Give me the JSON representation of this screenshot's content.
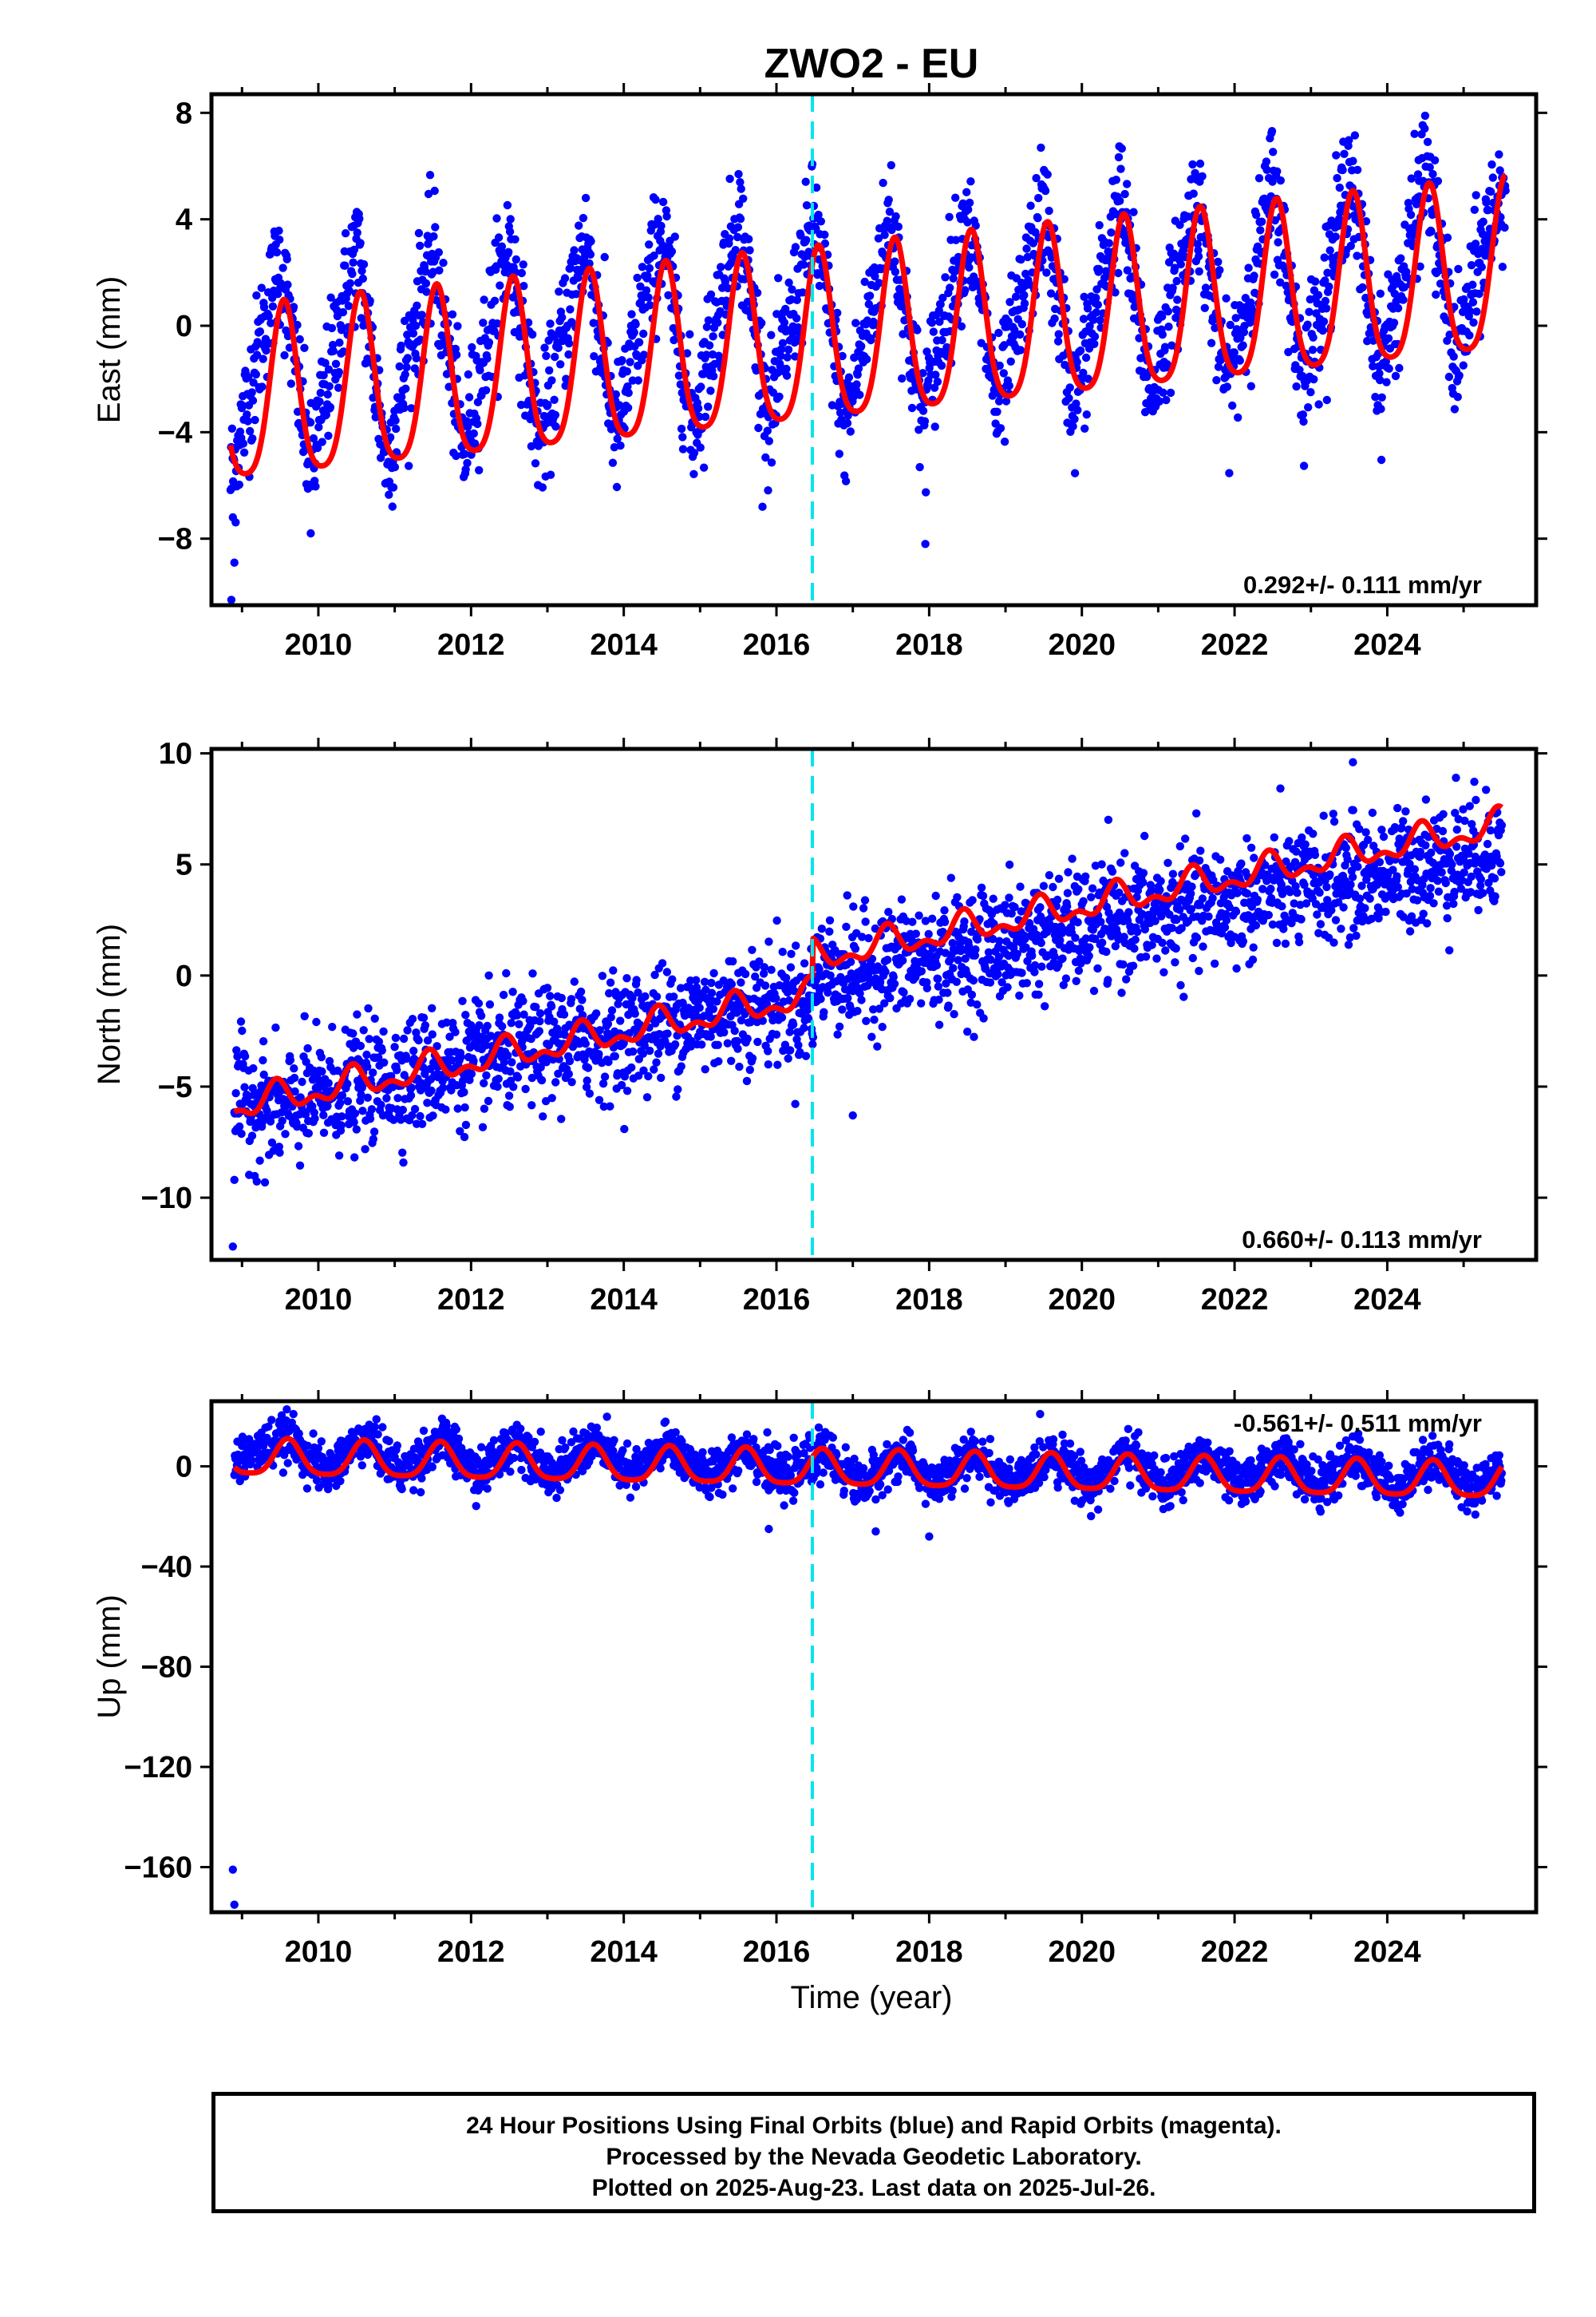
{
  "title": "ZWO2 - EU",
  "xlabel": "Time (year)",
  "x_tick_labels": [
    "2010",
    "2012",
    "2014",
    "2016",
    "2018",
    "2020",
    "2022",
    "2024"
  ],
  "colors": {
    "data_points": "#0000ff",
    "model_fit": "#ff0000",
    "offset_marker": "#00e5ee",
    "frame": "#000000"
  },
  "chart_data": [
    {
      "type": "scatter",
      "component": "East",
      "ylabel": "East (mm)",
      "ylim": [
        -10.5,
        8.7
      ],
      "yticks": [
        -8,
        -4,
        0,
        4,
        8
      ],
      "xlim": [
        2008.6,
        2025.95
      ],
      "rate_text": "0.292+/- 0.111 mm/yr",
      "offset_epoch": 2016.47,
      "series": [
        {
          "kind": "daily positions (blue)",
          "x": [
            2008.85,
            2009.25,
            2009.5,
            2009.9,
            2010.3,
            2010.5,
            2010.9,
            2011.3,
            2011.5,
            2011.9,
            2012.3,
            2012.5,
            2012.9,
            2013.3,
            2013.5,
            2013.9,
            2014.3,
            2014.5,
            2014.9,
            2015.3,
            2015.5,
            2015.9,
            2016.3,
            2016.5,
            2016.9,
            2017.3,
            2017.5,
            2017.9,
            2018.3,
            2018.5,
            2018.9,
            2019.3,
            2019.5,
            2019.9,
            2020.3,
            2020.5,
            2020.9,
            2021.3,
            2021.5,
            2021.9,
            2022.3,
            2022.5,
            2022.9,
            2023.3,
            2023.5,
            2023.9,
            2024.3,
            2024.5,
            2024.9,
            2025.3,
            2025.55
          ],
          "y": [
            -5.8,
            -0.5,
            2.5,
            -5.5,
            0.5,
            3.0,
            -5.2,
            0.6,
            2.8,
            -4.8,
            0.8,
            3.2,
            -4.5,
            1.0,
            3.4,
            -4.2,
            1.2,
            3.6,
            -3.9,
            1.4,
            4.2,
            -3.6,
            1.6,
            4.0,
            -3.8,
            1.5,
            4.2,
            -3.5,
            1.7,
            4.0,
            -3.2,
            1.9,
            4.5,
            -3.0,
            2.1,
            4.8,
            -2.6,
            2.3,
            5.0,
            -2.3,
            2.5,
            5.5,
            -2.0,
            2.8,
            6.0,
            -1.8,
            3.0,
            6.2,
            -1.5,
            3.5,
            5.5
          ],
          "noise_mm": 1.2
        },
        {
          "kind": "model fit (red)",
          "trend_mm_per_yr": 0.292,
          "annual_amp_mm": 3.2,
          "semiannual_amp_mm": 0.6,
          "offset_mm_at_2008_9": -3.0,
          "peak_phase_yr": 0.55
        }
      ],
      "outliers": [
        [
          2008.88,
          -7.2
        ],
        [
          2008.9,
          -8.9
        ],
        [
          2008.86,
          -10.3
        ],
        [
          2009.9,
          -7.8
        ],
        [
          2017.95,
          -8.2
        ]
      ]
    },
    {
      "type": "scatter",
      "component": "North",
      "ylabel": "North (mm)",
      "ylim": [
        -12.8,
        10.2
      ],
      "yticks": [
        -10,
        -5,
        0,
        5,
        10
      ],
      "xlim": [
        2008.6,
        2025.95
      ],
      "rate_text": "0.660+/- 0.113 mm/yr",
      "offset_epoch": 2016.47,
      "series": [
        {
          "kind": "daily positions (blue)",
          "x": [
            2008.9,
            2009.5,
            2010.0,
            2010.5,
            2011.0,
            2011.5,
            2012.0,
            2012.5,
            2013.0,
            2013.5,
            2014.0,
            2014.5,
            2015.0,
            2015.5,
            2016.0,
            2016.4,
            2016.6,
            2017.0,
            2017.5,
            2018.0,
            2018.5,
            2019.0,
            2019.5,
            2020.0,
            2020.5,
            2021.0,
            2021.5,
            2022.0,
            2022.5,
            2023.0,
            2023.5,
            2024.0,
            2024.5,
            2025.0,
            2025.5
          ],
          "y": [
            -5.5,
            -6.2,
            -5.4,
            -5.0,
            -4.6,
            -4.2,
            -3.9,
            -3.5,
            -3.2,
            -2.9,
            -2.6,
            -2.2,
            -1.8,
            -1.5,
            -1.2,
            -1.5,
            0.3,
            0.0,
            0.5,
            0.8,
            1.1,
            1.4,
            1.8,
            2.1,
            2.5,
            2.7,
            3.0,
            3.3,
            3.7,
            4.0,
            4.3,
            4.6,
            5.0,
            5.2,
            5.8
          ],
          "noise_mm": 1.3
        },
        {
          "kind": "model fit (red)",
          "trend_mm_per_yr": 0.66,
          "annual_amp_mm": 0.55,
          "semiannual_amp_mm": 0.35,
          "offset_mm_at_2008_9": -5.9,
          "step_at_offset_mm": 1.7,
          "peak_phase_yr": 0.45
        }
      ],
      "outliers": [
        [
          2008.88,
          -12.2
        ],
        [
          2008.9,
          -9.2
        ],
        [
          2017.0,
          -6.3
        ],
        [
          2023.55,
          9.6
        ],
        [
          2024.9,
          8.9
        ]
      ]
    },
    {
      "type": "scatter",
      "component": "Up",
      "ylabel": "Up (mm)",
      "ylim": [
        -178,
        26
      ],
      "yticks": [
        -160,
        -120,
        -80,
        -40,
        0
      ],
      "xlim": [
        2008.6,
        2025.95
      ],
      "rate_text": "-0.561+/- 0.511 mm/yr",
      "offset_epoch": 2016.47,
      "series": [
        {
          "kind": "daily positions (blue)",
          "x": [
            2008.9,
            2009.6,
            2010.1,
            2010.6,
            2011.1,
            2011.6,
            2012.1,
            2012.6,
            2013.1,
            2013.6,
            2014.1,
            2014.6,
            2015.1,
            2015.6,
            2016.1,
            2016.6,
            2017.1,
            2017.6,
            2018.1,
            2018.6,
            2019.1,
            2019.6,
            2020.1,
            2020.6,
            2021.1,
            2021.6,
            2022.1,
            2022.6,
            2023.1,
            2023.6,
            2024.1,
            2024.6,
            2025.1,
            2025.5
          ],
          "y": [
            2,
            12,
            -3,
            12,
            -3,
            11,
            -4,
            11,
            -4,
            10,
            -4,
            9,
            -5,
            8,
            -6,
            6,
            -8,
            5,
            -8,
            5,
            -9,
            6,
            -8,
            6,
            -9,
            5,
            -9,
            5,
            -9,
            4,
            -10,
            4,
            -10,
            0
          ],
          "noise_mm": 4.5
        },
        {
          "kind": "model fit (red)",
          "trend_mm_per_yr": -0.561,
          "annual_amp_mm": 7.0,
          "semiannual_amp_mm": 1.5,
          "offset_mm_at_2008_9": 3.0,
          "peak_phase_yr": 0.6
        }
      ],
      "outliers": [
        [
          2008.88,
          -161
        ],
        [
          2008.9,
          -175
        ],
        [
          2015.9,
          -25
        ],
        [
          2017.3,
          -26
        ],
        [
          2018.0,
          -28
        ]
      ]
    }
  ],
  "footnote": {
    "line1": "24 Hour Positions Using Final Orbits (blue) and Rapid Orbits (magenta).",
    "line2": "Processed by the Nevada Geodetic Laboratory.",
    "line3": "Plotted on 2025-Aug-23. Last data on 2025-Jul-26."
  }
}
